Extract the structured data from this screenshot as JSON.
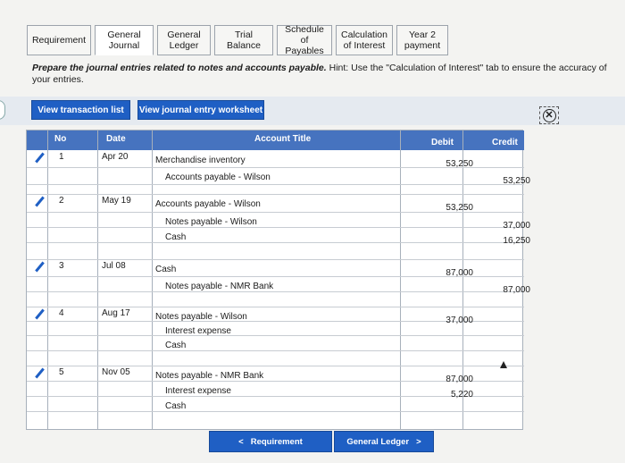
{
  "tabs": [
    {
      "label": "Requirement"
    },
    {
      "label": "General Journal"
    },
    {
      "label": "General Ledger"
    },
    {
      "label": "Trial Balance"
    },
    {
      "label": "Schedule of Payables"
    },
    {
      "label": "Calculation of Interest"
    },
    {
      "label": "Year 2 payment"
    }
  ],
  "prompt": {
    "bold": "Prepare the journal entries related to notes and accounts payable.",
    "hint": " Hint: Use the \"Calculation of Interest\" tab to ensure the accuracy of your entries."
  },
  "toolbar": {
    "view_transactions": "View transaction list",
    "view_worksheet": "View journal entry worksheet",
    "close_glyph": "✕"
  },
  "table": {
    "headers": {
      "no": "No",
      "date": "Date",
      "account": "Account Title",
      "debit": "Debit",
      "credit": "Credit"
    },
    "rows": [
      {
        "no": "1",
        "date": "Apr 20",
        "account": "Merchandise inventory",
        "debit": "53,250",
        "credit": ""
      },
      {
        "no": "",
        "date": "",
        "account": "Accounts payable - Wilson",
        "debit": "",
        "credit": "53,250"
      },
      {
        "no": "2",
        "date": "May 19",
        "account": "Accounts payable - Wilson",
        "debit": "53,250",
        "credit": ""
      },
      {
        "no": "",
        "date": "",
        "account": "Notes payable - Wilson",
        "debit": "",
        "credit": "37,000"
      },
      {
        "no": "",
        "date": "",
        "account": "Cash",
        "debit": "",
        "credit": "16,250"
      },
      {
        "no": "3",
        "date": "Jul 08",
        "account": "Cash",
        "debit": "87,000",
        "credit": ""
      },
      {
        "no": "",
        "date": "",
        "account": "Notes payable - NMR Bank",
        "debit": "",
        "credit": "87,000"
      },
      {
        "no": "4",
        "date": "Aug 17",
        "account": "Notes payable - Wilson",
        "debit": "37,000",
        "credit": ""
      },
      {
        "no": "",
        "date": "",
        "account": "Interest expense",
        "debit": "",
        "credit": ""
      },
      {
        "no": "",
        "date": "",
        "account": "Cash",
        "debit": "",
        "credit": ""
      },
      {
        "no": "5",
        "date": "Nov 05",
        "account": "Notes payable - NMR Bank",
        "debit": "87,000",
        "credit": ""
      },
      {
        "no": "",
        "date": "",
        "account": "Interest expense",
        "debit": "5,220",
        "credit": ""
      },
      {
        "no": "",
        "date": "",
        "account": "Cash",
        "debit": "",
        "credit": ""
      }
    ]
  },
  "nav": {
    "prev_label": "Requirement",
    "next_label": "General Ledger",
    "prev_glyph": "<",
    "next_glyph": ">"
  }
}
